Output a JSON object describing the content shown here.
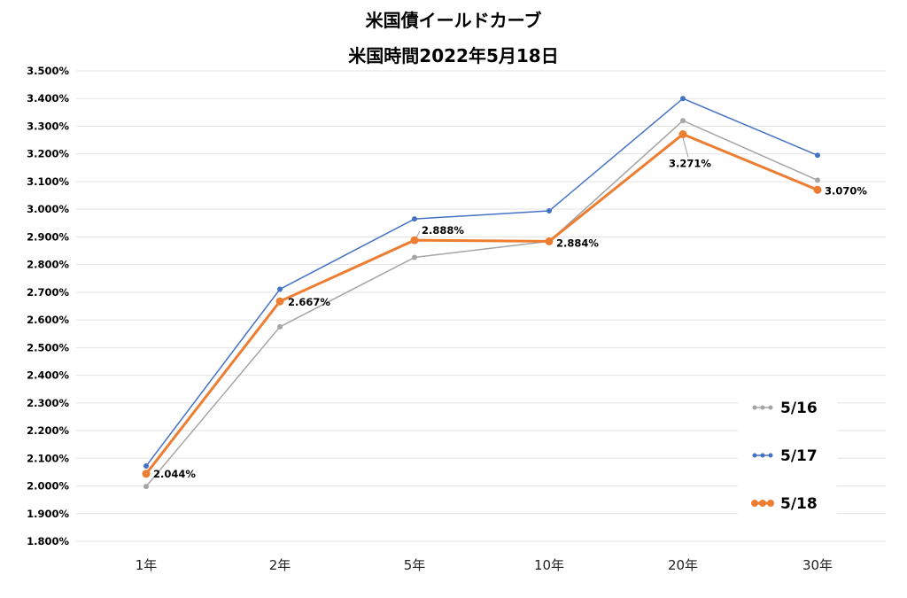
{
  "chart_data": {
    "type": "line",
    "title": "米国債イールドカーブ",
    "subtitle": "米国時間2022年5月18日",
    "categories": [
      "1年",
      "2年",
      "5年",
      "10年",
      "20年",
      "30年"
    ],
    "y_ticks": [
      "1.800%",
      "1.900%",
      "2.000%",
      "2.100%",
      "2.200%",
      "2.300%",
      "2.400%",
      "2.500%",
      "2.600%",
      "2.700%",
      "2.800%",
      "2.900%",
      "3.000%",
      "3.100%",
      "3.200%",
      "3.300%",
      "3.400%",
      "3.500%"
    ],
    "ylim": [
      1.8,
      3.5
    ],
    "grid": true,
    "legend_position": "bottom-right",
    "series": [
      {
        "name": "5/16",
        "color": "#a5a5a5",
        "values": [
          1.998,
          2.575,
          2.826,
          2.884,
          3.32,
          3.105
        ]
      },
      {
        "name": "5/17",
        "color": "#4472c4",
        "values": [
          2.072,
          2.711,
          2.965,
          2.994,
          3.4,
          3.195
        ]
      },
      {
        "name": "5/18",
        "color": "#ed7d31",
        "values": [
          2.044,
          2.667,
          2.888,
          2.884,
          3.271,
          3.07
        ]
      }
    ],
    "data_labels": [
      "2.044%",
      "2.667%",
      "2.888%",
      "2.884%",
      "3.271%",
      "3.070%"
    ]
  }
}
